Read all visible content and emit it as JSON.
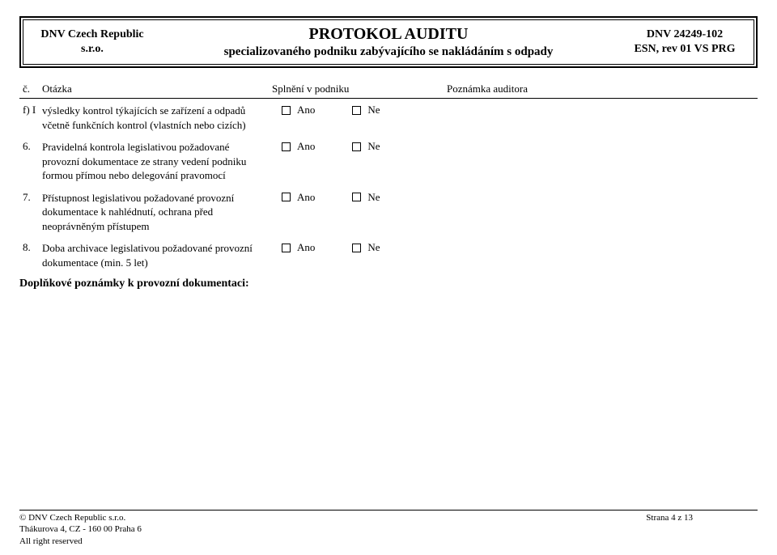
{
  "header": {
    "left_line1": "DNV Czech Republic",
    "left_line2": "s.r.o.",
    "title": "PROTOKOL AUDITU",
    "subtitle": "specializovaného podniku zabývajícího se nakládáním s odpady",
    "right_line1": "DNV 24249-102",
    "right_line2": "ESN, rev 01 VS PRG"
  },
  "thead": {
    "num": "č.",
    "question": "Otázka",
    "answer": "Splnění v podniku",
    "note": "Poznámka auditora"
  },
  "answer_labels": {
    "yes": "Ano",
    "no": "Ne"
  },
  "rows": [
    {
      "num": "f) I",
      "text": "výsledky kontrol týkajících se zařízení a odpadů včetně funkčních kontrol (vlastních nebo cizích)"
    },
    {
      "num": "6.",
      "text": "Pravidelná kontrola legislativou požadované provozní dokumentace ze strany vedení podniku formou přímou nebo delegování pravomocí"
    },
    {
      "num": "7.",
      "text": "Přístupnost legislativou požadované provozní dokumentace k nahlédnutí, ochrana před neoprávněným přístupem"
    },
    {
      "num": "8.",
      "text": "Doba archivace legislativou požadované provozní dokumentace (min. 5 let)"
    }
  ],
  "supplementary": "Doplňkové poznámky k provozní dokumentaci:",
  "footer": {
    "copyright": "© DNV Czech Republic s.r.o.",
    "address": "Thákurova 4, CZ - 160 00  Praha 6",
    "rights": "All right reserved",
    "page": "Strana 4 z 13"
  }
}
